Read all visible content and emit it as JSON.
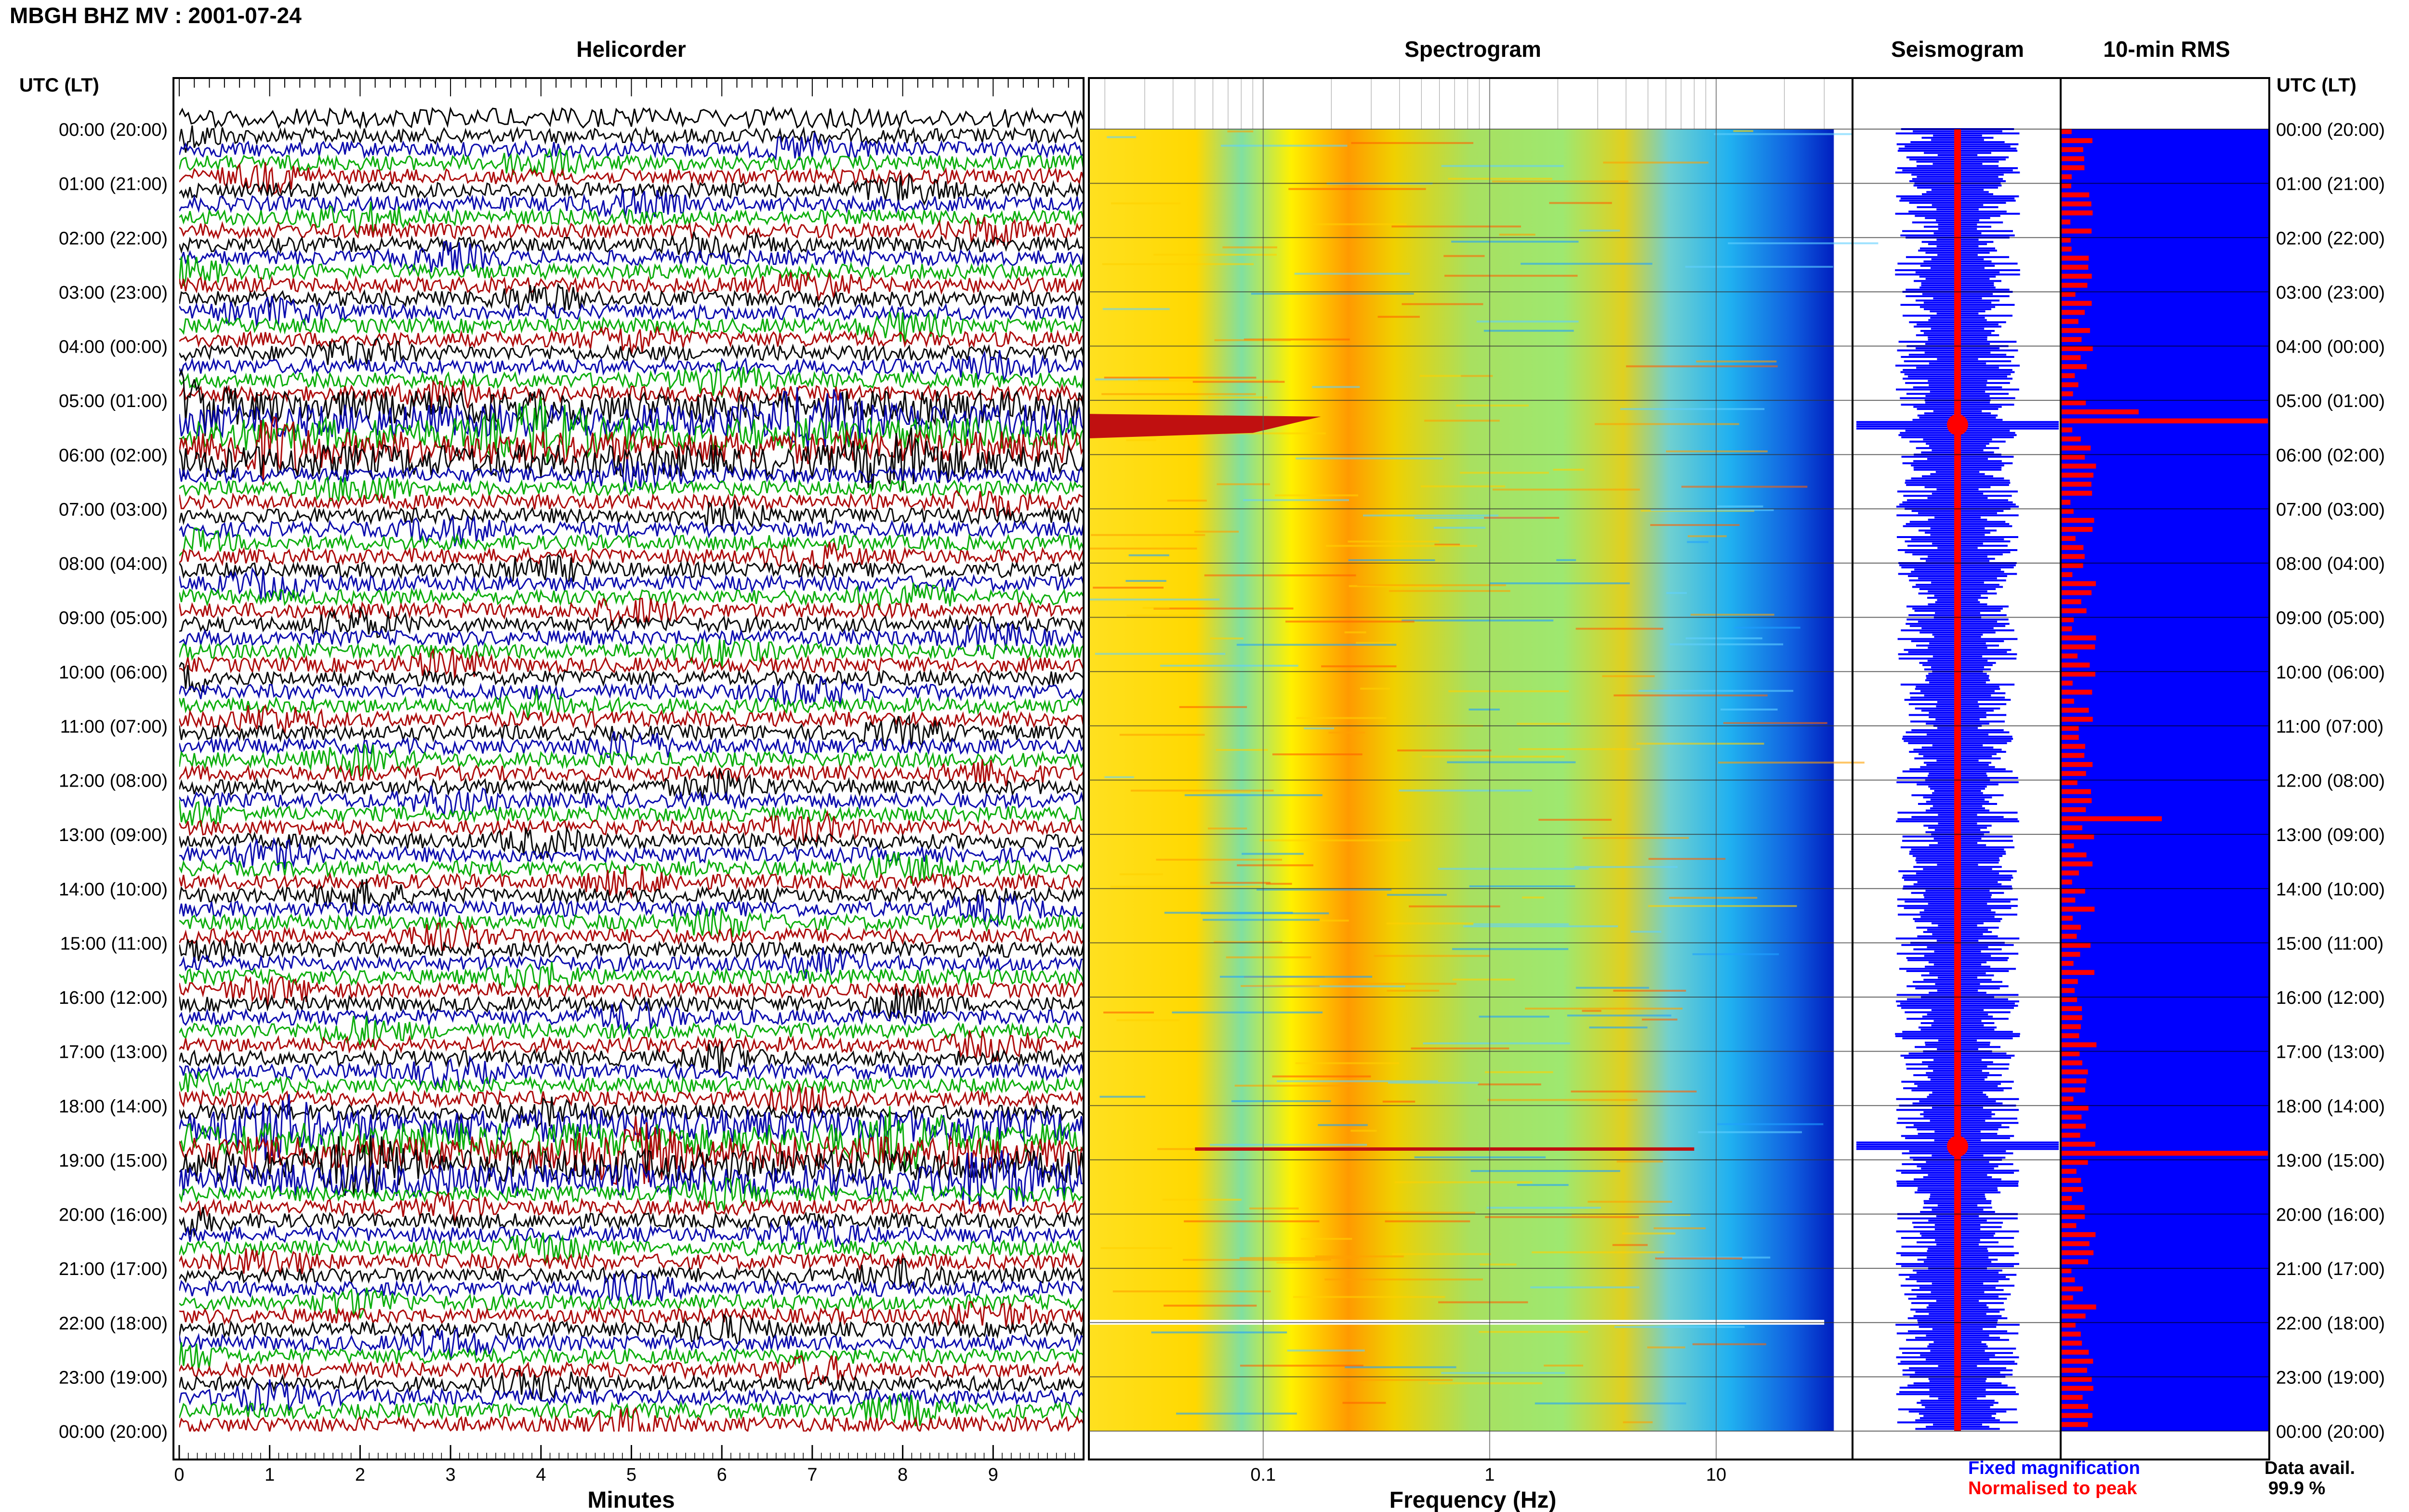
{
  "title": "MBGH BHZ MV : 2001-07-24",
  "panels": {
    "helicorder": "Helicorder",
    "spectrogram": "Spectrogram",
    "seismogram": "Seismogram",
    "rms": "10-min RMS"
  },
  "time_axis_label": "UTC (LT)",
  "time_labels": [
    "00:00 (20:00)",
    "01:00 (21:00)",
    "02:00 (22:00)",
    "03:00 (23:00)",
    "04:00 (00:00)",
    "05:00 (01:00)",
    "06:00 (02:00)",
    "07:00 (03:00)",
    "08:00 (04:00)",
    "09:00 (05:00)",
    "10:00 (06:00)",
    "11:00 (07:00)",
    "12:00 (08:00)",
    "13:00 (09:00)",
    "14:00 (10:00)",
    "15:00 (11:00)",
    "16:00 (12:00)",
    "17:00 (13:00)",
    "18:00 (14:00)",
    "19:00 (15:00)",
    "20:00 (16:00)",
    "21:00 (17:00)",
    "22:00 (18:00)",
    "23:00 (19:00)",
    "00:00 (20:00)"
  ],
  "minutes_axis": {
    "label": "Minutes",
    "ticks": [
      "0",
      "1",
      "2",
      "3",
      "4",
      "5",
      "6",
      "7",
      "8",
      "9"
    ],
    "range": [
      0,
      10
    ]
  },
  "frequency_axis": {
    "label": "Frequency (Hz)",
    "ticks": [
      "0.1",
      "1",
      "10"
    ],
    "range_hz": [
      0.017,
      40
    ],
    "scale": "log"
  },
  "legend": {
    "fixed": "Fixed magnification",
    "normalised": "Normalised to peak",
    "fixed_color": "#0000ff",
    "normalised_color": "#ff0000"
  },
  "data_availability": {
    "label": "Data avail.",
    "value": "99.9 %"
  },
  "colors": {
    "trace_cycle": [
      "#000000",
      "#0000aa",
      "#00aa00",
      "#aa0000"
    ],
    "seismogram": "#0000ff",
    "rms_bar": "#ff0000",
    "rms_bg": "#0000ff"
  },
  "chart_data": {
    "type": "heatmap",
    "hours": 24,
    "events_utc_hour": [
      5.45,
      18.75
    ],
    "rms_peaks_utc_hour": [
      5.4,
      12.6,
      18.8
    ],
    "spectrogram_peak_band_hz": [
      0.2,
      0.6
    ]
  }
}
